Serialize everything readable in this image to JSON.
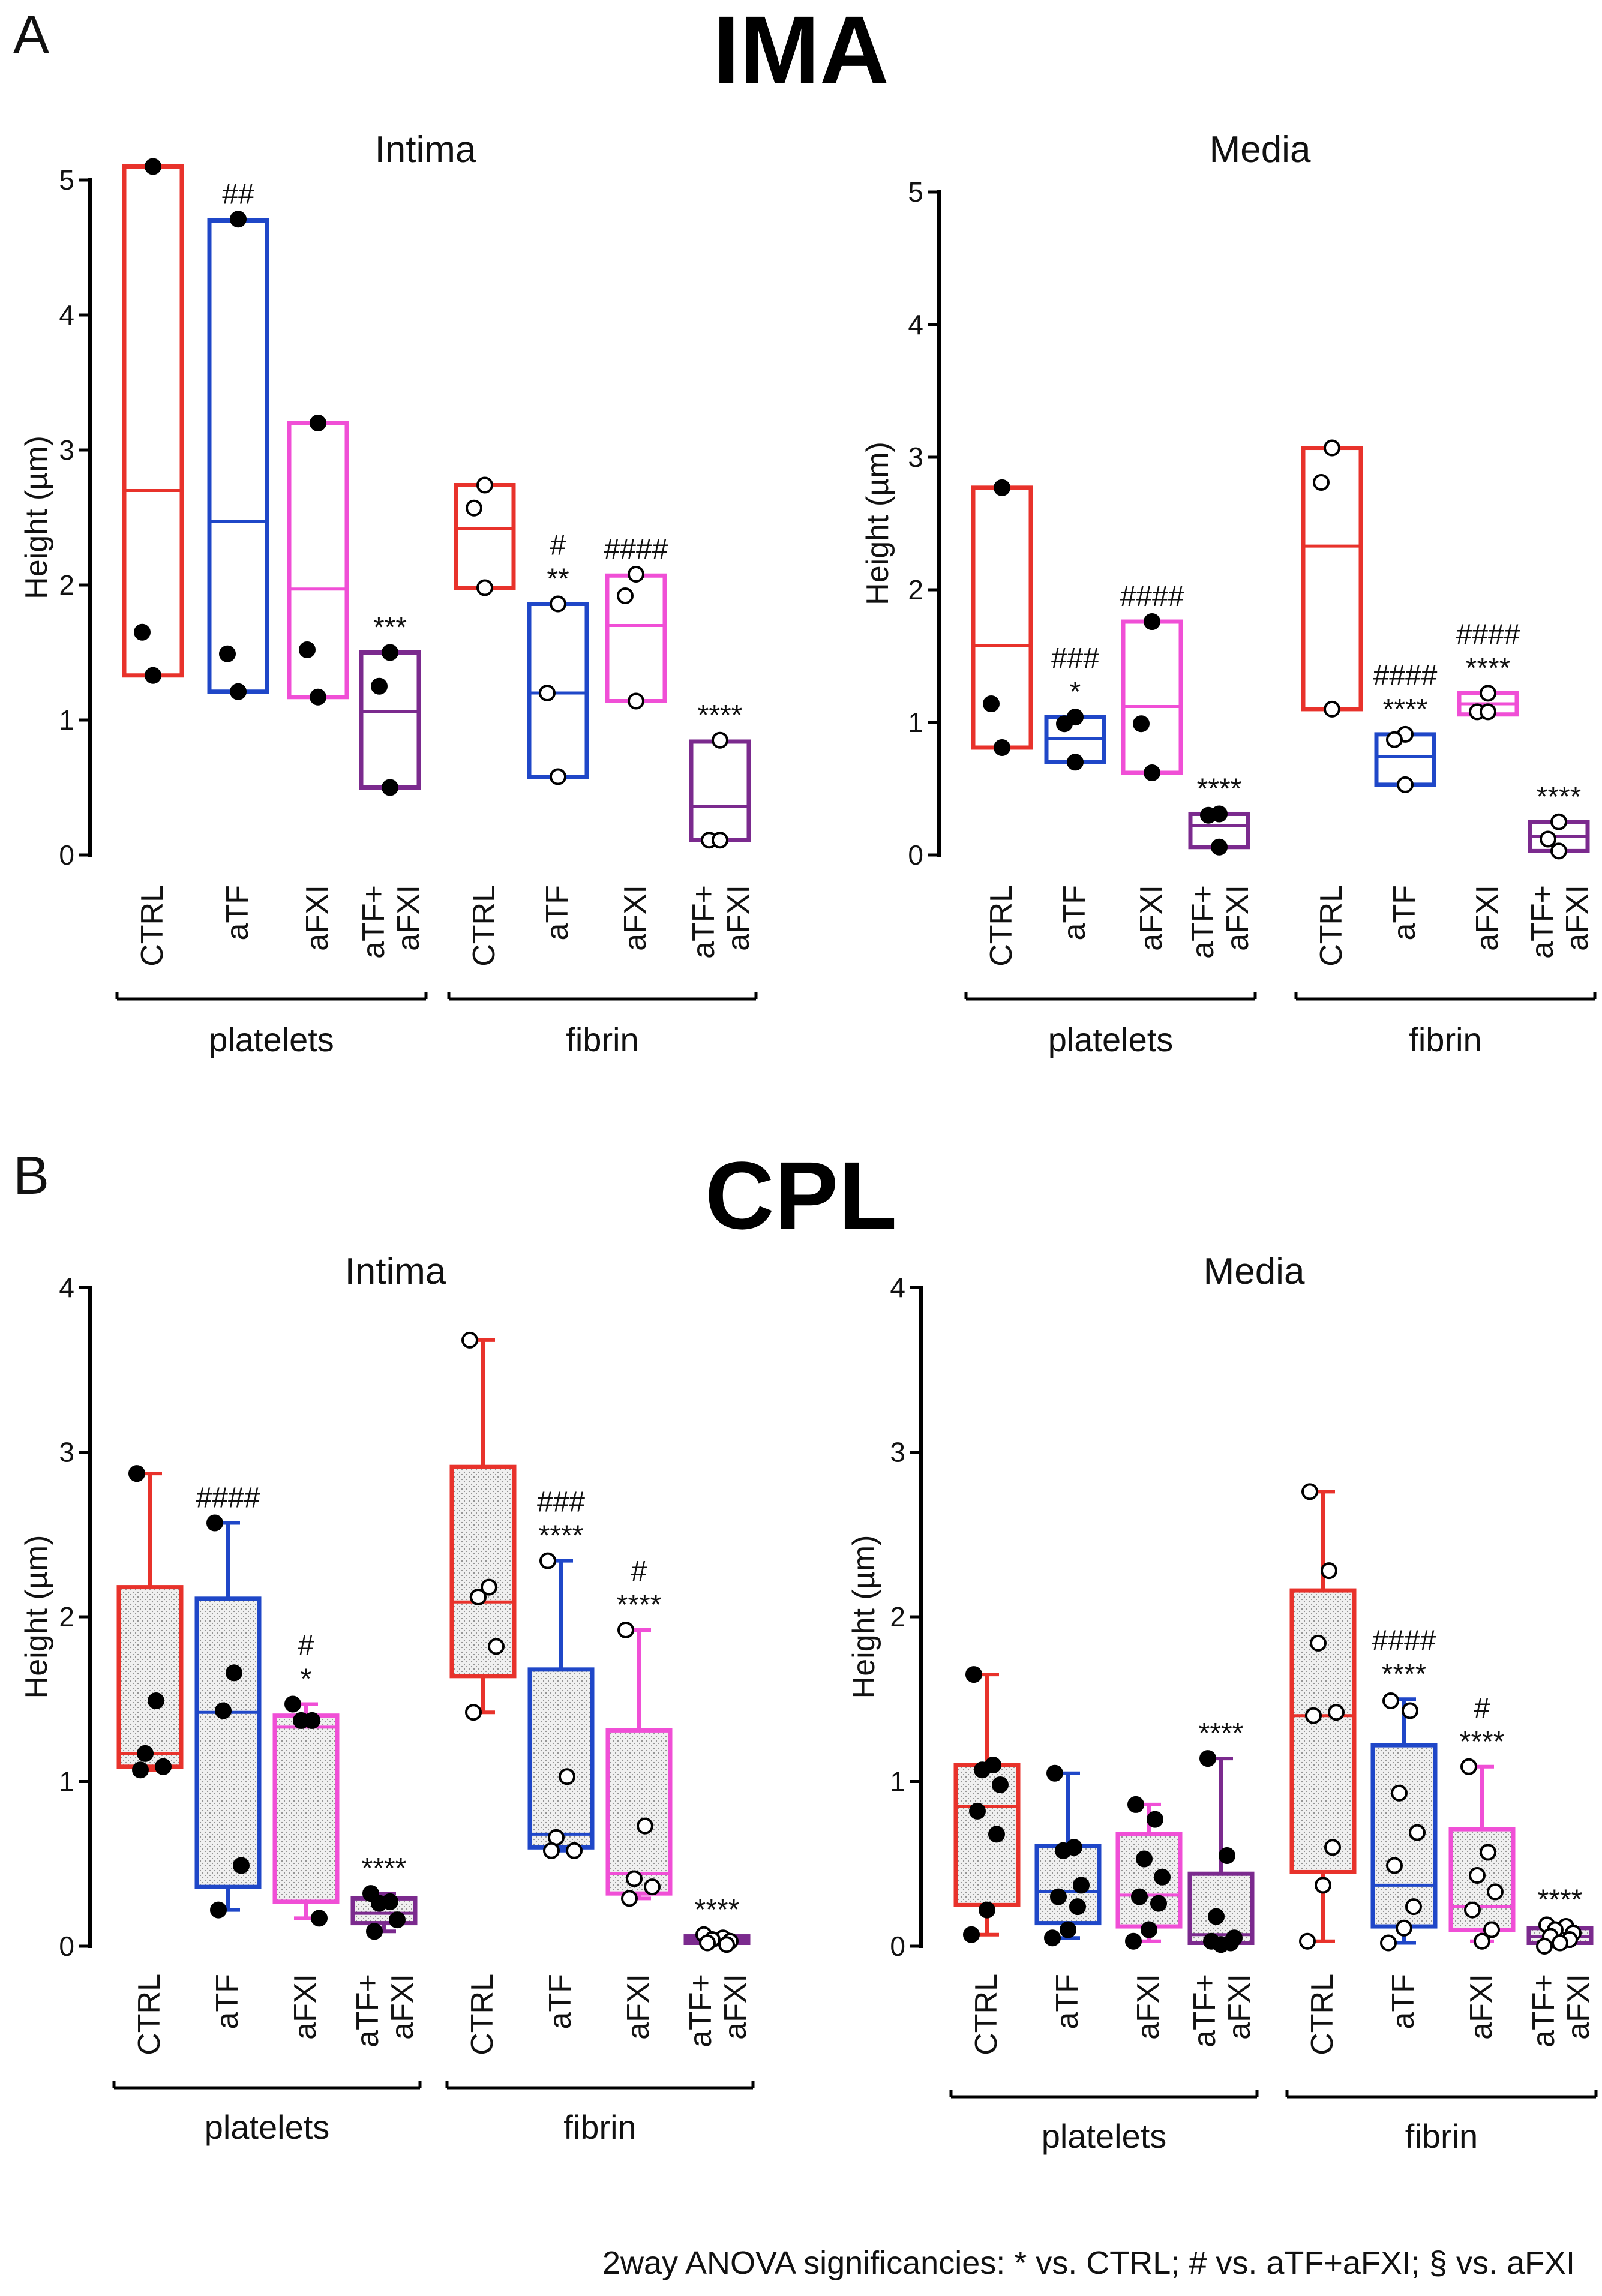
{
  "panels": [
    {
      "letter": "A",
      "title": "IMA"
    },
    {
      "letter": "B",
      "title": "CPL"
    }
  ],
  "footnote": "2way ANOVA significancies: * vs. CTRL; # vs. aTF+aFXI; § vs. aFXI",
  "colors": {
    "CTRL": "#e8322b",
    "aTF": "#1f47c8",
    "aFXI": "#f04fd6",
    "aTF+aFXI": "#7b2a8e",
    "axis": "#000000"
  },
  "category_labels": [
    [
      "CTRL"
    ],
    [
      "aTF"
    ],
    [
      "aFXI"
    ],
    [
      "aTF+",
      "aFXI"
    ]
  ],
  "group_labels": [
    "platelets",
    "fibrin"
  ],
  "chart_data": [
    {
      "type": "box",
      "panel": "A",
      "title": "Intima",
      "ylabel": "Height (µm)",
      "ylim": [
        0,
        5
      ],
      "yticks": [
        0,
        1,
        2,
        3,
        4,
        5
      ],
      "style": "floating",
      "groups": [
        "platelets",
        "fibrin"
      ],
      "boxes": [
        {
          "group": "platelets",
          "category": "CTRL",
          "q1": 1.33,
          "median": 2.7,
          "q3": 5.1,
          "points": [
            5.1,
            1.65,
            1.33
          ],
          "filled": true,
          "sig": []
        },
        {
          "group": "platelets",
          "category": "aTF",
          "q1": 1.21,
          "median": 2.47,
          "q3": 4.7,
          "points": [
            4.71,
            1.49,
            1.21
          ],
          "filled": true,
          "sig": [
            "##"
          ]
        },
        {
          "group": "platelets",
          "category": "aFXI",
          "q1": 1.17,
          "median": 1.97,
          "q3": 3.2,
          "points": [
            3.2,
            1.52,
            1.17
          ],
          "filled": true,
          "sig": []
        },
        {
          "group": "platelets",
          "category": "aTF+aFXI",
          "q1": 0.5,
          "median": 1.06,
          "q3": 1.5,
          "points": [
            1.5,
            1.25,
            0.5
          ],
          "filled": true,
          "sig": [
            "***"
          ]
        },
        {
          "group": "fibrin",
          "category": "CTRL",
          "q1": 1.98,
          "median": 2.42,
          "q3": 2.74,
          "points": [
            2.74,
            2.57,
            1.98
          ],
          "filled": false,
          "sig": []
        },
        {
          "group": "fibrin",
          "category": "aTF",
          "q1": 0.58,
          "median": 1.2,
          "q3": 1.86,
          "points": [
            1.86,
            1.2,
            0.58
          ],
          "filled": false,
          "sig": [
            "#",
            "**"
          ]
        },
        {
          "group": "fibrin",
          "category": "aFXI",
          "q1": 1.14,
          "median": 1.7,
          "q3": 2.07,
          "points": [
            2.08,
            1.92,
            1.14
          ],
          "filled": false,
          "sig": [
            "####"
          ]
        },
        {
          "group": "fibrin",
          "category": "aTF+aFXI",
          "q1": 0.11,
          "median": 0.36,
          "q3": 0.84,
          "points": [
            0.85,
            0.11,
            0.11
          ],
          "filled": false,
          "sig": [
            "****"
          ]
        }
      ]
    },
    {
      "type": "box",
      "panel": "A",
      "title": "Media",
      "ylabel": "Height (µm)",
      "ylim": [
        0,
        5
      ],
      "yticks": [
        0,
        1,
        2,
        3,
        4,
        5
      ],
      "style": "floating",
      "groups": [
        "platelets",
        "fibrin"
      ],
      "boxes": [
        {
          "group": "platelets",
          "category": "CTRL",
          "q1": 0.81,
          "median": 1.58,
          "q3": 2.77,
          "points": [
            2.77,
            1.14,
            0.81
          ],
          "filled": true,
          "sig": []
        },
        {
          "group": "platelets",
          "category": "aTF",
          "q1": 0.7,
          "median": 0.88,
          "q3": 1.04,
          "points": [
            1.04,
            0.99,
            0.7
          ],
          "filled": true,
          "sig": [
            "###",
            "*"
          ]
        },
        {
          "group": "platelets",
          "category": "aFXI",
          "q1": 0.62,
          "median": 1.12,
          "q3": 1.76,
          "points": [
            1.76,
            0.99,
            0.62
          ],
          "filled": true,
          "sig": [
            "####"
          ]
        },
        {
          "group": "platelets",
          "category": "aTF+aFXI",
          "q1": 0.06,
          "median": 0.22,
          "q3": 0.31,
          "points": [
            0.31,
            0.3,
            0.06
          ],
          "filled": true,
          "sig": [
            "****"
          ]
        },
        {
          "group": "fibrin",
          "category": "CTRL",
          "q1": 1.1,
          "median": 2.33,
          "q3": 3.07,
          "points": [
            3.07,
            2.81,
            1.1
          ],
          "filled": false,
          "sig": []
        },
        {
          "group": "fibrin",
          "category": "aTF",
          "q1": 0.53,
          "median": 0.74,
          "q3": 0.91,
          "points": [
            0.91,
            0.87,
            0.53
          ],
          "filled": false,
          "sig": [
            "####",
            "****"
          ]
        },
        {
          "group": "fibrin",
          "category": "aFXI",
          "q1": 1.06,
          "median": 1.14,
          "q3": 1.22,
          "points": [
            1.22,
            1.08,
            1.08
          ],
          "filled": false,
          "sig": [
            "####",
            "****"
          ]
        },
        {
          "group": "fibrin",
          "category": "aTF+aFXI",
          "q1": 0.03,
          "median": 0.14,
          "q3": 0.25,
          "points": [
            0.25,
            0.12,
            0.03
          ],
          "filled": false,
          "sig": [
            "****"
          ]
        }
      ]
    },
    {
      "type": "box",
      "panel": "B",
      "title": "Intima",
      "ylabel": "Height (µm)",
      "ylim": [
        0,
        4
      ],
      "yticks": [
        0,
        1,
        2,
        3,
        4
      ],
      "style": "whisker",
      "groups": [
        "platelets",
        "fibrin"
      ],
      "boxes": [
        {
          "group": "platelets",
          "category": "CTRL",
          "min": 1.07,
          "q1": 1.09,
          "median": 1.17,
          "q3": 2.18,
          "max": 2.87,
          "points": [
            2.87,
            1.49,
            1.17,
            1.09,
            1.07
          ],
          "filled": true,
          "sig": []
        },
        {
          "group": "platelets",
          "category": "aTF",
          "min": 0.22,
          "q1": 0.36,
          "median": 1.42,
          "q3": 2.11,
          "max": 2.57,
          "points": [
            2.57,
            1.66,
            1.43,
            0.49,
            0.22
          ],
          "filled": true,
          "sig": [
            "####"
          ]
        },
        {
          "group": "platelets",
          "category": "aFXI",
          "min": 0.17,
          "q1": 0.27,
          "median": 1.33,
          "q3": 1.4,
          "max": 1.47,
          "points": [
            1.47,
            1.37,
            1.37,
            0.17
          ],
          "filled": true,
          "sig": [
            "#",
            "*"
          ]
        },
        {
          "group": "platelets",
          "category": "aTF+aFXI",
          "min": 0.09,
          "q1": 0.14,
          "median": 0.2,
          "q3": 0.29,
          "max": 0.32,
          "points": [
            0.32,
            0.27,
            0.26,
            0.16,
            0.09
          ],
          "filled": true,
          "sig": [
            "****"
          ]
        },
        {
          "group": "fibrin",
          "category": "CTRL",
          "min": 1.42,
          "q1": 1.64,
          "median": 2.09,
          "q3": 2.91,
          "max": 3.68,
          "points": [
            3.68,
            2.18,
            2.12,
            1.82,
            1.42
          ],
          "filled": false,
          "sig": []
        },
        {
          "group": "fibrin",
          "category": "aTF",
          "min": 0.58,
          "q1": 0.6,
          "median": 0.68,
          "q3": 1.68,
          "max": 2.34,
          "points": [
            2.34,
            1.03,
            0.66,
            0.58,
            0.58
          ],
          "filled": false,
          "sig": [
            "###",
            "****"
          ]
        },
        {
          "group": "fibrin",
          "category": "aFXI",
          "min": 0.29,
          "q1": 0.32,
          "median": 0.44,
          "q3": 1.31,
          "max": 1.92,
          "points": [
            1.92,
            0.73,
            0.41,
            0.36,
            0.29
          ],
          "filled": false,
          "sig": [
            "#",
            "****"
          ]
        },
        {
          "group": "fibrin",
          "category": "aTF+aFXI",
          "min": 0.01,
          "q1": 0.02,
          "median": 0.04,
          "q3": 0.06,
          "max": 0.07,
          "points": [
            0.07,
            0.05,
            0.04,
            0.03,
            0.02,
            0.01
          ],
          "filled": false,
          "sig": [
            "****"
          ]
        }
      ]
    },
    {
      "type": "box",
      "panel": "B",
      "title": "Media",
      "ylabel": "Height (µm)",
      "ylim": [
        0,
        4
      ],
      "yticks": [
        0,
        1,
        2,
        3,
        4
      ],
      "style": "whisker",
      "groups": [
        "platelets",
        "fibrin"
      ],
      "boxes": [
        {
          "group": "platelets",
          "category": "CTRL",
          "min": 0.07,
          "q1": 0.25,
          "median": 0.85,
          "q3": 1.1,
          "max": 1.65,
          "points": [
            1.65,
            1.1,
            1.07,
            0.98,
            0.82,
            0.68,
            0.22,
            0.07
          ],
          "filled": true,
          "sig": []
        },
        {
          "group": "platelets",
          "category": "aTF",
          "min": 0.05,
          "q1": 0.14,
          "median": 0.33,
          "q3": 0.61,
          "max": 1.05,
          "points": [
            1.05,
            0.6,
            0.58,
            0.37,
            0.3,
            0.24,
            0.1,
            0.05
          ],
          "filled": true,
          "sig": []
        },
        {
          "group": "platelets",
          "category": "aFXI",
          "min": 0.03,
          "q1": 0.12,
          "median": 0.31,
          "q3": 0.68,
          "max": 0.86,
          "points": [
            0.86,
            0.77,
            0.53,
            0.42,
            0.3,
            0.26,
            0.1,
            0.03
          ],
          "filled": true,
          "sig": []
        },
        {
          "group": "platelets",
          "category": "aTF+aFXI",
          "min": 0.01,
          "q1": 0.02,
          "median": 0.07,
          "q3": 0.44,
          "max": 1.14,
          "points": [
            1.14,
            0.55,
            0.18,
            0.05,
            0.03,
            0.02,
            0.01
          ],
          "filled": true,
          "sig": [
            "****"
          ]
        },
        {
          "group": "fibrin",
          "category": "CTRL",
          "min": 0.03,
          "q1": 0.45,
          "median": 1.4,
          "q3": 2.16,
          "max": 2.76,
          "points": [
            2.76,
            2.28,
            1.84,
            1.42,
            1.4,
            0.6,
            0.37,
            0.03
          ],
          "filled": false,
          "sig": []
        },
        {
          "group": "fibrin",
          "category": "aTF",
          "min": 0.02,
          "q1": 0.12,
          "median": 0.37,
          "q3": 1.22,
          "max": 1.5,
          "points": [
            1.49,
            1.43,
            0.93,
            0.69,
            0.49,
            0.24,
            0.11,
            0.02
          ],
          "filled": false,
          "sig": [
            "####",
            "****"
          ]
        },
        {
          "group": "fibrin",
          "category": "aFXI",
          "min": 0.03,
          "q1": 0.1,
          "median": 0.24,
          "q3": 0.71,
          "max": 1.09,
          "points": [
            1.09,
            0.57,
            0.43,
            0.33,
            0.22,
            0.1,
            0.03
          ],
          "filled": false,
          "sig": [
            "#",
            "****"
          ]
        },
        {
          "group": "fibrin",
          "category": "aTF+aFXI",
          "min": 0.0,
          "q1": 0.02,
          "median": 0.06,
          "q3": 0.11,
          "max": 0.13,
          "points": [
            0.13,
            0.12,
            0.1,
            0.08,
            0.06,
            0.04,
            0.02,
            0.0
          ],
          "filled": false,
          "sig": [
            "****"
          ]
        }
      ]
    }
  ]
}
